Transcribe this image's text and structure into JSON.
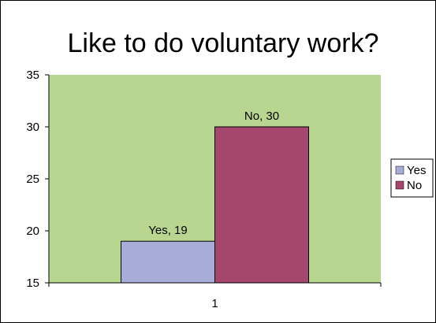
{
  "chart_data": {
    "type": "bar",
    "title": "Like to do voluntary work?",
    "categories": [
      "1"
    ],
    "series": [
      {
        "name": "Yes",
        "values": [
          19
        ],
        "color": "#a8acd8",
        "data_label": "Yes, 19"
      },
      {
        "name": "No",
        "values": [
          30
        ],
        "color": "#a5466f",
        "data_label": "No, 30"
      }
    ],
    "ylim": [
      15,
      35
    ],
    "y_ticks": [
      15,
      20,
      25,
      30,
      35
    ],
    "plot_background": "#b8d690",
    "grid": false,
    "legend_position": "right"
  }
}
